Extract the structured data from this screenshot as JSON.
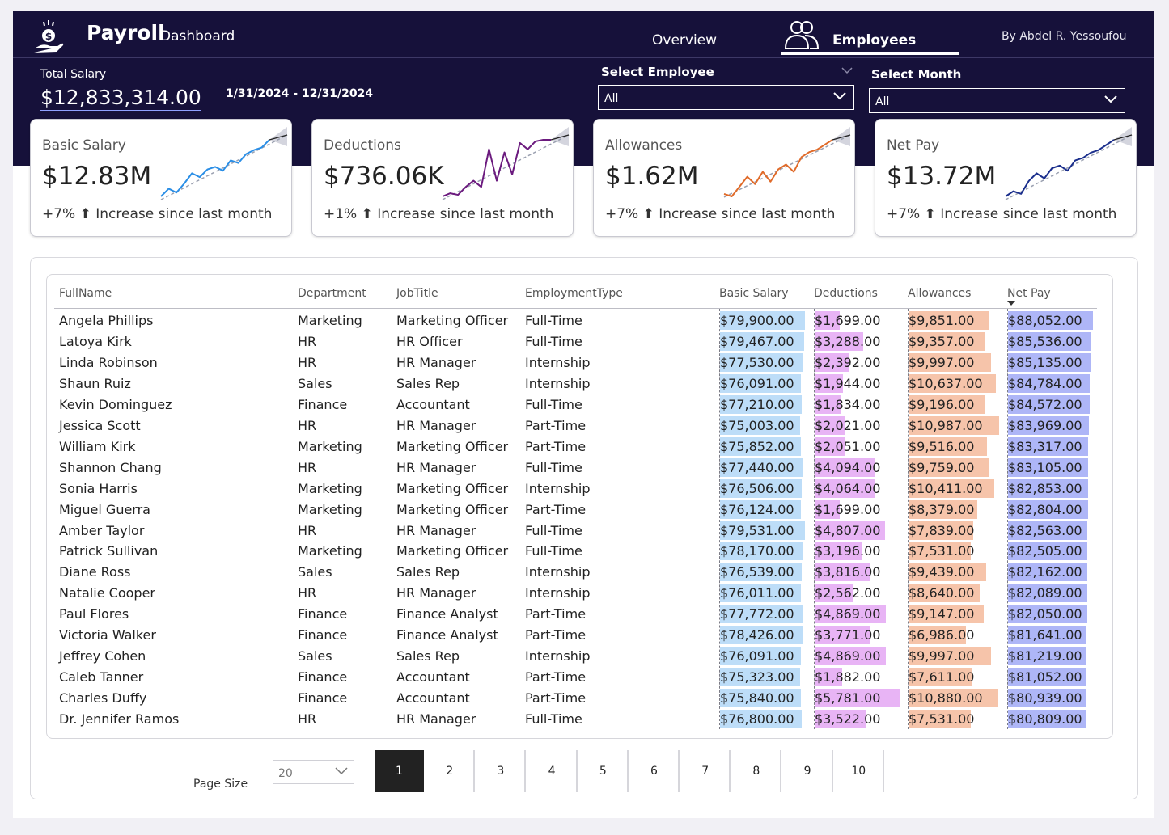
{
  "header": {
    "brand_title": "Payroll",
    "brand_subtitle": "Dashboard",
    "nav": [
      {
        "label": "Overview",
        "active": false
      },
      {
        "label": "Employees",
        "active": true
      }
    ],
    "author": "By Abdel R. Yessoufou",
    "total_salary_label": "Total Salary",
    "total_salary_value": "$12,833,314.00",
    "date_range": "1/31/2024 - 12/31/2024"
  },
  "slicers": [
    {
      "label": "Select Employee",
      "value": "All"
    },
    {
      "label": "Select Month",
      "value": "All"
    }
  ],
  "kpis": [
    {
      "title": "Basic Salary",
      "value": "$12.83M",
      "trend": "+7% ⬆ Increase since last month",
      "color": "#2a8ee6",
      "sparkline": [
        2,
        8,
        5,
        12,
        20,
        17,
        23,
        25,
        22,
        30,
        28,
        35,
        38,
        40,
        46
      ]
    },
    {
      "title": "Deductions",
      "value": "$736.06K",
      "trend": "+1% ⬆ Increase since last month",
      "color": "#6b1a7e",
      "sparkline": [
        10,
        12,
        11,
        16,
        20,
        16,
        40,
        20,
        38,
        24,
        44,
        40,
        45,
        46,
        46
      ]
    },
    {
      "title": "Allowances",
      "value": "$1.62M",
      "trend": "+7% ⬆ Increase since last month",
      "color": "#e06b2a",
      "sparkline": [
        4,
        2,
        10,
        18,
        12,
        22,
        14,
        24,
        28,
        22,
        34,
        38,
        40,
        44,
        48
      ]
    },
    {
      "title": "Net Pay",
      "value": "$13.72M",
      "trend": "+7% ⬆ Increase since last month",
      "color": "#1a2e8c",
      "sparkline": [
        6,
        10,
        8,
        18,
        24,
        20,
        28,
        30,
        26,
        34,
        36,
        40,
        42,
        46,
        50
      ]
    }
  ],
  "table": {
    "columns": [
      "FullName",
      "Department",
      "JobTitle",
      "EmploymentType",
      "Basic Salary",
      "Deductions",
      "Allowances",
      "Net Pay"
    ],
    "bar_colors": {
      "basic": "#bdddf8",
      "deductions": "#e8b4f5",
      "allowances": "#f6c4aa",
      "netpay": "#aeb6f7"
    },
    "bar_max": {
      "basic": 79900,
      "deductions": 5781,
      "allowances": 10987,
      "netpay": 88052
    },
    "rows": [
      {
        "name": "Angela Phillips",
        "dept": "Marketing",
        "job": "Marketing Officer",
        "type": "Full-Time",
        "basic": "$79,900.00",
        "ded": "$1,699.00",
        "allow": "$9,851.00",
        "net": "$88,052.00",
        "basic_v": 79900,
        "ded_v": 1699,
        "allow_v": 9851,
        "net_v": 88052
      },
      {
        "name": "Latoya Kirk",
        "dept": "HR",
        "job": "HR Officer",
        "type": "Full-Time",
        "basic": "$79,467.00",
        "ded": "$3,288.00",
        "allow": "$9,357.00",
        "net": "$85,536.00",
        "basic_v": 79467,
        "ded_v": 3288,
        "allow_v": 9357,
        "net_v": 85536
      },
      {
        "name": "Linda Robinson",
        "dept": "HR",
        "job": "HR Manager",
        "type": "Internship",
        "basic": "$77,530.00",
        "ded": "$2,392.00",
        "allow": "$9,997.00",
        "net": "$85,135.00",
        "basic_v": 77530,
        "ded_v": 2392,
        "allow_v": 9997,
        "net_v": 85135
      },
      {
        "name": "Shaun Ruiz",
        "dept": "Sales",
        "job": "Sales Rep",
        "type": "Internship",
        "basic": "$76,091.00",
        "ded": "$1,944.00",
        "allow": "$10,637.00",
        "net": "$84,784.00",
        "basic_v": 76091,
        "ded_v": 1944,
        "allow_v": 10637,
        "net_v": 84784
      },
      {
        "name": "Kevin Dominguez",
        "dept": "Finance",
        "job": "Accountant",
        "type": "Full-Time",
        "basic": "$77,210.00",
        "ded": "$1,834.00",
        "allow": "$9,196.00",
        "net": "$84,572.00",
        "basic_v": 77210,
        "ded_v": 1834,
        "allow_v": 9196,
        "net_v": 84572
      },
      {
        "name": "Jessica Scott",
        "dept": "HR",
        "job": "HR Manager",
        "type": "Part-Time",
        "basic": "$75,003.00",
        "ded": "$2,021.00",
        "allow": "$10,987.00",
        "net": "$83,969.00",
        "basic_v": 75003,
        "ded_v": 2021,
        "allow_v": 10987,
        "net_v": 83969
      },
      {
        "name": "William Kirk",
        "dept": "Marketing",
        "job": "Marketing Officer",
        "type": "Part-Time",
        "basic": "$75,852.00",
        "ded": "$2,051.00",
        "allow": "$9,516.00",
        "net": "$83,317.00",
        "basic_v": 75852,
        "ded_v": 2051,
        "allow_v": 9516,
        "net_v": 83317
      },
      {
        "name": "Shannon Chang",
        "dept": "HR",
        "job": "HR Manager",
        "type": "Full-Time",
        "basic": "$77,440.00",
        "ded": "$4,094.00",
        "allow": "$9,759.00",
        "net": "$83,105.00",
        "basic_v": 77440,
        "ded_v": 4094,
        "allow_v": 9759,
        "net_v": 83105
      },
      {
        "name": "Sonia Harris",
        "dept": "Marketing",
        "job": "Marketing Officer",
        "type": "Internship",
        "basic": "$76,506.00",
        "ded": "$4,064.00",
        "allow": "$10,411.00",
        "net": "$82,853.00",
        "basic_v": 76506,
        "ded_v": 4064,
        "allow_v": 10411,
        "net_v": 82853
      },
      {
        "name": "Miguel Guerra",
        "dept": "Marketing",
        "job": "Marketing Officer",
        "type": "Part-Time",
        "basic": "$76,124.00",
        "ded": "$1,699.00",
        "allow": "$8,379.00",
        "net": "$82,804.00",
        "basic_v": 76124,
        "ded_v": 1699,
        "allow_v": 8379,
        "net_v": 82804
      },
      {
        "name": "Amber Taylor",
        "dept": "HR",
        "job": "HR Manager",
        "type": "Full-Time",
        "basic": "$79,531.00",
        "ded": "$4,807.00",
        "allow": "$7,839.00",
        "net": "$82,563.00",
        "basic_v": 79531,
        "ded_v": 4807,
        "allow_v": 7839,
        "net_v": 82563
      },
      {
        "name": "Patrick Sullivan",
        "dept": "Marketing",
        "job": "Marketing Officer",
        "type": "Full-Time",
        "basic": "$78,170.00",
        "ded": "$3,196.00",
        "allow": "$7,531.00",
        "net": "$82,505.00",
        "basic_v": 78170,
        "ded_v": 3196,
        "allow_v": 7531,
        "net_v": 82505
      },
      {
        "name": "Diane Ross",
        "dept": "Sales",
        "job": "Sales Rep",
        "type": "Internship",
        "basic": "$76,539.00",
        "ded": "$3,816.00",
        "allow": "$9,439.00",
        "net": "$82,162.00",
        "basic_v": 76539,
        "ded_v": 3816,
        "allow_v": 9439,
        "net_v": 82162
      },
      {
        "name": "Natalie Cooper",
        "dept": "HR",
        "job": "HR Manager",
        "type": "Internship",
        "basic": "$76,011.00",
        "ded": "$2,562.00",
        "allow": "$8,640.00",
        "net": "$82,089.00",
        "basic_v": 76011,
        "ded_v": 2562,
        "allow_v": 8640,
        "net_v": 82089
      },
      {
        "name": "Paul Flores",
        "dept": "Finance",
        "job": "Finance Analyst",
        "type": "Part-Time",
        "basic": "$77,772.00",
        "ded": "$4,869.00",
        "allow": "$9,147.00",
        "net": "$82,050.00",
        "basic_v": 77772,
        "ded_v": 4869,
        "allow_v": 9147,
        "net_v": 82050
      },
      {
        "name": "Victoria Walker",
        "dept": "Finance",
        "job": "Finance Analyst",
        "type": "Part-Time",
        "basic": "$78,426.00",
        "ded": "$3,771.00",
        "allow": "$6,986.00",
        "net": "$81,641.00",
        "basic_v": 78426,
        "ded_v": 3771,
        "allow_v": 6986,
        "net_v": 81641
      },
      {
        "name": "Jeffrey Cohen",
        "dept": "Sales",
        "job": "Sales Rep",
        "type": "Internship",
        "basic": "$76,091.00",
        "ded": "$4,869.00",
        "allow": "$9,997.00",
        "net": "$81,219.00",
        "basic_v": 76091,
        "ded_v": 4869,
        "allow_v": 9997,
        "net_v": 81219
      },
      {
        "name": "Caleb Tanner",
        "dept": "Finance",
        "job": "Accountant",
        "type": "Part-Time",
        "basic": "$75,323.00",
        "ded": "$1,882.00",
        "allow": "$7,611.00",
        "net": "$81,052.00",
        "basic_v": 75323,
        "ded_v": 1882,
        "allow_v": 7611,
        "net_v": 81052
      },
      {
        "name": "Charles Duffy",
        "dept": "Finance",
        "job": "Accountant",
        "type": "Part-Time",
        "basic": "$75,840.00",
        "ded": "$5,781.00",
        "allow": "$10,880.00",
        "net": "$80,939.00",
        "basic_v": 75840,
        "ded_v": 5781,
        "allow_v": 10880,
        "net_v": 80939
      },
      {
        "name": "Dr. Jennifer Ramos",
        "dept": "HR",
        "job": "HR Manager",
        "type": "Full-Time",
        "basic": "$76,800.00",
        "ded": "$3,522.00",
        "allow": "$7,531.00",
        "net": "$80,809.00",
        "basic_v": 76800,
        "ded_v": 3522,
        "allow_v": 7531,
        "net_v": 80809
      }
    ]
  },
  "pagination": {
    "page_size_label": "Page Size",
    "page_size_value": "20",
    "pages": [
      "1",
      "2",
      "3",
      "4",
      "5",
      "6",
      "7",
      "8",
      "9",
      "10"
    ],
    "active_page": "1"
  }
}
